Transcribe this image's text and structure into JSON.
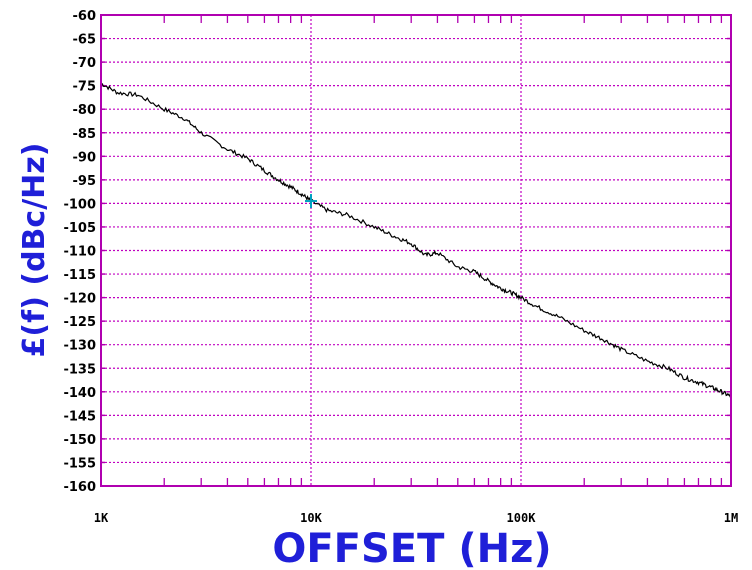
{
  "chart_data": {
    "type": "line",
    "title": "",
    "xlabel": "OFFSET (Hz)",
    "ylabel": "£(f) (dBc/Hz)",
    "x_scale": "log",
    "xlim": [
      1000,
      1000000
    ],
    "ylim": [
      -160,
      -60
    ],
    "x_ticks": [
      {
        "value": 1000,
        "label": "1K"
      },
      {
        "value": 10000,
        "label": "10K"
      },
      {
        "value": 100000,
        "label": "100K"
      },
      {
        "value": 1000000,
        "label": "1M"
      }
    ],
    "y_ticks": [
      "-60",
      "-65",
      "-70",
      "-75",
      "-80",
      "-85",
      "-90",
      "-95",
      "-100",
      "-105",
      "-110",
      "-115",
      "-120",
      "-125",
      "-130",
      "-135",
      "-140",
      "-145",
      "-150",
      "-155",
      "-160"
    ],
    "grid": true,
    "series": [
      {
        "x": [
          1000,
          1200,
          1500,
          2000,
          2500,
          3000,
          4000,
          5000,
          6000,
          7000,
          8000,
          9000,
          10000,
          12000,
          15000,
          20000,
          25000,
          30000,
          35000,
          40000,
          50000,
          60000,
          70000,
          80000,
          90000,
          100000,
          120000,
          150000,
          200000,
          250000,
          300000,
          400000,
          500000,
          600000,
          700000,
          800000,
          900000,
          1000000
        ],
        "y": [
          -74.5,
          -76.5,
          -77,
          -80,
          -82,
          -85,
          -88.5,
          -90.5,
          -93,
          -95,
          -96.5,
          -98,
          -99.5,
          -101.5,
          -102.5,
          -105,
          -107,
          -108.5,
          -111,
          -110.5,
          -113.5,
          -114.5,
          -116.5,
          -118,
          -119,
          -120,
          -122,
          -124,
          -127,
          -129,
          -131,
          -133.5,
          -135,
          -137,
          -138,
          -139,
          -140,
          -141
        ]
      }
    ],
    "marker": {
      "x": 10000,
      "y": -99.5
    },
    "colors": {
      "frame": "#b000b0",
      "grid": "#c000c0",
      "line": "#000000",
      "marker": "#00a0c0",
      "axis_title": "#1f1fd8",
      "tick_label": "#000000"
    }
  }
}
